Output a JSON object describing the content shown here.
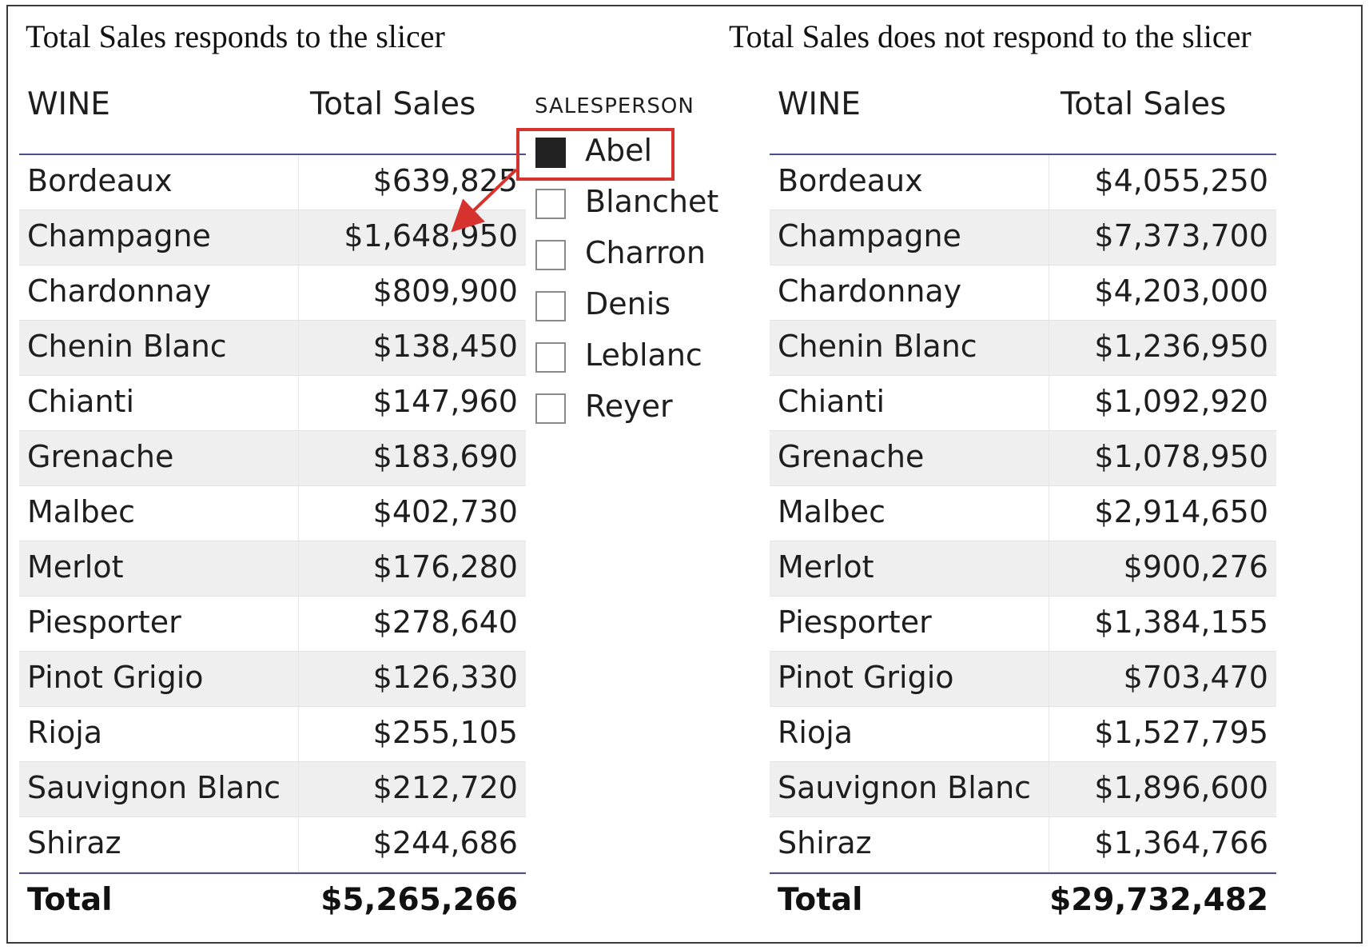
{
  "captions": {
    "left": "Total Sales responds to the slicer",
    "right": "Total Sales does not respond to the slicer"
  },
  "left_table": {
    "col_name": "WINE",
    "col_value": "Total Sales",
    "rows": [
      {
        "wine": "Bordeaux",
        "sales": "$639,825"
      },
      {
        "wine": "Champagne",
        "sales": "$1,648,950"
      },
      {
        "wine": "Chardonnay",
        "sales": "$809,900"
      },
      {
        "wine": "Chenin Blanc",
        "sales": "$138,450"
      },
      {
        "wine": "Chianti",
        "sales": "$147,960"
      },
      {
        "wine": "Grenache",
        "sales": "$183,690"
      },
      {
        "wine": "Malbec",
        "sales": "$402,730"
      },
      {
        "wine": "Merlot",
        "sales": "$176,280"
      },
      {
        "wine": "Piesporter",
        "sales": "$278,640"
      },
      {
        "wine": "Pinot Grigio",
        "sales": "$126,330"
      },
      {
        "wine": "Rioja",
        "sales": "$255,105"
      },
      {
        "wine": "Sauvignon Blanc",
        "sales": "$212,720"
      },
      {
        "wine": "Shiraz",
        "sales": "$244,686"
      }
    ],
    "total_label": "Total",
    "total_value": "$5,265,266"
  },
  "right_table": {
    "col_name": "WINE",
    "col_value": "Total Sales",
    "rows": [
      {
        "wine": "Bordeaux",
        "sales": "$4,055,250"
      },
      {
        "wine": "Champagne",
        "sales": "$7,373,700"
      },
      {
        "wine": "Chardonnay",
        "sales": "$4,203,000"
      },
      {
        "wine": "Chenin Blanc",
        "sales": "$1,236,950"
      },
      {
        "wine": "Chianti",
        "sales": "$1,092,920"
      },
      {
        "wine": "Grenache",
        "sales": "$1,078,950"
      },
      {
        "wine": "Malbec",
        "sales": "$2,914,650"
      },
      {
        "wine": "Merlot",
        "sales": "$900,276"
      },
      {
        "wine": "Piesporter",
        "sales": "$1,384,155"
      },
      {
        "wine": "Pinot Grigio",
        "sales": "$703,470"
      },
      {
        "wine": "Rioja",
        "sales": "$1,527,795"
      },
      {
        "wine": "Sauvignon Blanc",
        "sales": "$1,896,600"
      },
      {
        "wine": "Shiraz",
        "sales": "$1,364,766"
      }
    ],
    "total_label": "Total",
    "total_value": "$29,732,482"
  },
  "slicer": {
    "title": "SALESPERSON",
    "items": [
      {
        "label": "Abel",
        "checked": true
      },
      {
        "label": "Blanchet",
        "checked": false
      },
      {
        "label": "Charron",
        "checked": false
      },
      {
        "label": "Denis",
        "checked": false
      },
      {
        "label": "Leblanc",
        "checked": false
      },
      {
        "label": "Reyer",
        "checked": false
      }
    ]
  },
  "colors": {
    "highlight": "#d6322e",
    "header_rule": "#4c4f8f",
    "row_alt": "#efefef",
    "checked_box": "#222222"
  }
}
